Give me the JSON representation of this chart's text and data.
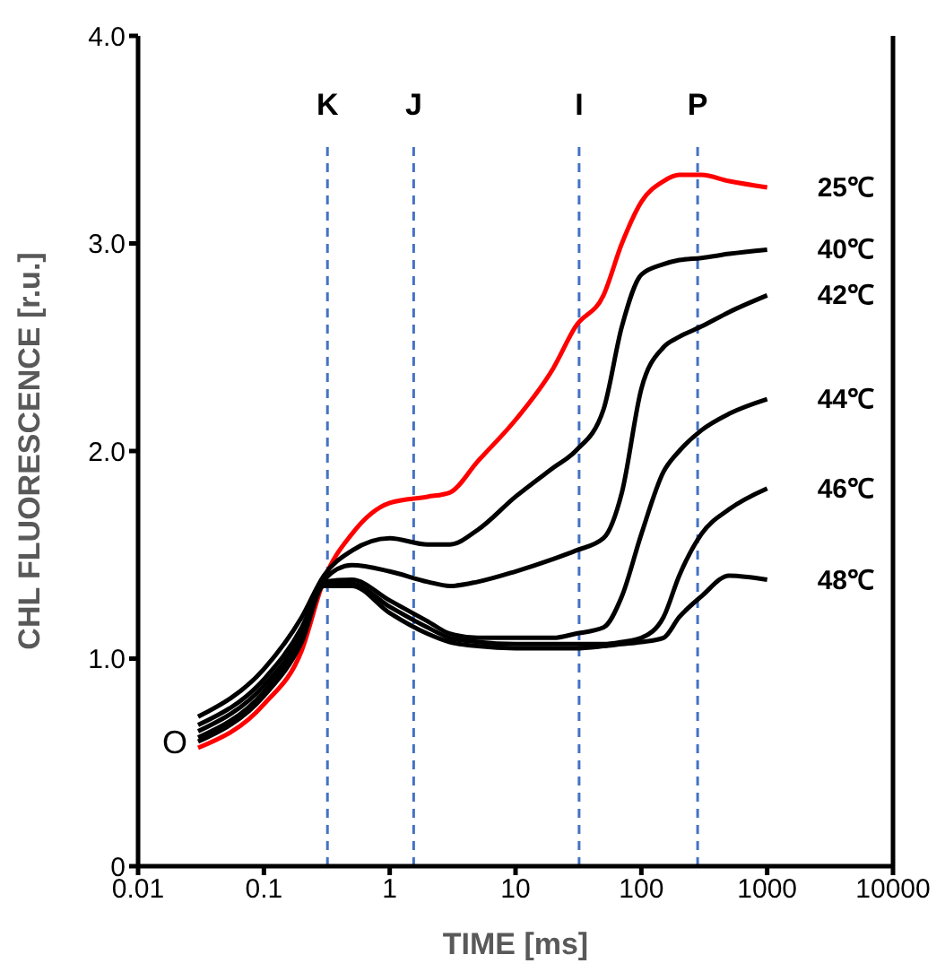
{
  "chart_data": {
    "type": "line",
    "xlabel": "TIME [ms]",
    "ylabel": "CHL FLUORESCENCE [r.u.]",
    "log": "x",
    "marker": "none",
    "line_style": "solid",
    "x": [
      0.03,
      0.1,
      0.2,
      0.3,
      0.5,
      1,
      2,
      3,
      5,
      10,
      20,
      30,
      50,
      70,
      100,
      150,
      200,
      300,
      500,
      1000
    ],
    "xlim": [
      0.01,
      10000
    ],
    "xticks": [
      0.01,
      0.1,
      1,
      10,
      100,
      1000,
      10000
    ],
    "ylim": [
      0,
      4
    ],
    "yticks": [
      0,
      {
        "value": 1,
        "label": "1.0"
      },
      {
        "value": 2,
        "label": "2.0"
      },
      {
        "value": 3,
        "label": "3.0"
      },
      {
        "value": 4,
        "label": "4.0"
      }
    ],
    "series": [
      {
        "name": "25℃",
        "color": "#ff0000",
        "values": [
          0.57,
          0.78,
          1.04,
          1.38,
          1.6,
          1.75,
          1.78,
          1.8,
          1.95,
          2.15,
          2.4,
          2.6,
          2.75,
          3.0,
          3.2,
          3.3,
          3.33,
          3.33,
          3.3,
          3.27
        ]
      },
      {
        "name": "40℃",
        "color": "#000000",
        "values": [
          0.72,
          0.95,
          1.2,
          1.4,
          1.52,
          1.58,
          1.55,
          1.55,
          1.62,
          1.78,
          1.92,
          2.0,
          2.2,
          2.6,
          2.85,
          2.9,
          2.92,
          2.93,
          2.95,
          2.97
        ]
      },
      {
        "name": "42℃",
        "color": "#000000",
        "values": [
          0.68,
          0.9,
          1.15,
          1.38,
          1.45,
          1.42,
          1.37,
          1.35,
          1.37,
          1.42,
          1.48,
          1.52,
          1.58,
          1.8,
          2.3,
          2.5,
          2.55,
          2.6,
          2.67,
          2.75
        ]
      },
      {
        "name": "44℃",
        "color": "#000000",
        "values": [
          0.65,
          0.87,
          1.12,
          1.37,
          1.38,
          1.28,
          1.18,
          1.12,
          1.1,
          1.1,
          1.1,
          1.12,
          1.15,
          1.3,
          1.6,
          1.9,
          2.0,
          2.1,
          2.18,
          2.25
        ]
      },
      {
        "name": "46℃",
        "color": "#000000",
        "values": [
          0.62,
          0.84,
          1.1,
          1.36,
          1.36,
          1.25,
          1.15,
          1.1,
          1.08,
          1.07,
          1.07,
          1.07,
          1.07,
          1.08,
          1.1,
          1.2,
          1.4,
          1.6,
          1.72,
          1.82
        ]
      },
      {
        "name": "48℃",
        "color": "#000000",
        "values": [
          0.6,
          0.82,
          1.08,
          1.35,
          1.35,
          1.22,
          1.12,
          1.08,
          1.06,
          1.05,
          1.05,
          1.05,
          1.06,
          1.07,
          1.08,
          1.1,
          1.2,
          1.3,
          1.4,
          1.38
        ]
      }
    ],
    "ref_lines": [
      {
        "axis": "x",
        "value": 0.32,
        "label": "K",
        "color": "#4472c4",
        "line_style": "dashed"
      },
      {
        "axis": "x",
        "value": 1.55,
        "label": "J",
        "color": "#4472c4",
        "line_style": "dashed"
      },
      {
        "axis": "x",
        "value": 32,
        "label": "I",
        "color": "#4472c4",
        "line_style": "dashed"
      },
      {
        "axis": "x",
        "value": 280,
        "label": "P",
        "color": "#4472c4",
        "line_style": "dashed"
      }
    ],
    "annotations": [
      {
        "text": "O",
        "x": 0.03,
        "y": 0.6
      }
    ]
  }
}
